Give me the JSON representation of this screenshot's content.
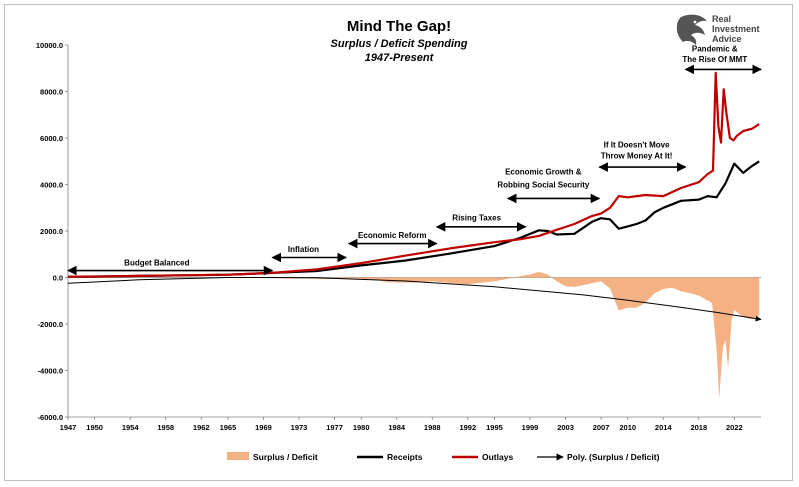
{
  "chart_data": {
    "type": "line",
    "title": "Mind The Gap!",
    "subtitle_line1": "Surplus / Deficit Spending",
    "subtitle_line2": "1947-Present",
    "x_range": [
      1947,
      2025
    ],
    "ylim": [
      -6000,
      10000
    ],
    "y_ticks": [
      -6000,
      -4000,
      -2000,
      0,
      2000,
      4000,
      6000,
      8000,
      10000
    ],
    "y_tick_labels": [
      "-6000.0",
      "-4000.0",
      "-2000.0",
      "0.0",
      "2000.0",
      "4000.0",
      "6000.0",
      "8000.0",
      "10000.0"
    ],
    "x_ticks": [
      1947,
      1950,
      1954,
      1958,
      1962,
      1965,
      1969,
      1973,
      1977,
      1980,
      1984,
      1988,
      1992,
      1995,
      1999,
      2003,
      2007,
      2010,
      2014,
      2018,
      2022
    ],
    "x_tick_labels": [
      "1947",
      "1950",
      "1954",
      "1958",
      "1962",
      "1965",
      "1969",
      "1973",
      "1977",
      "1980",
      "1984",
      "1988",
      "1992",
      "1995",
      "1999",
      "2003",
      "2007",
      "2010",
      "2014",
      "2018",
      "2022"
    ],
    "grid": false,
    "legend_position": "bottom",
    "series": [
      {
        "name": "Surplus / Deficit",
        "kind": "area",
        "color": "#f4b183",
        "x": [
          1947,
          1950,
          1955,
          1960,
          1965,
          1969,
          1971,
          1975,
          1976,
          1979,
          1982,
          1983,
          1986,
          1988,
          1991,
          1992,
          1995,
          1997,
          1998,
          1999,
          2000,
          2001,
          2002,
          2003,
          2004,
          2006,
          2007,
          2008,
          2009,
          2010,
          2011,
          2012,
          2013,
          2014,
          2015,
          2016,
          2017,
          2018,
          2019,
          2019.5,
          2020,
          2020.3,
          2020.7,
          2021,
          2021.3,
          2021.7,
          2022,
          2023,
          2024,
          2024.8
        ],
        "values": [
          10,
          0,
          -5,
          5,
          -10,
          5,
          -30,
          -60,
          -70,
          -40,
          -130,
          -210,
          -220,
          -160,
          -270,
          -290,
          -160,
          -20,
          70,
          130,
          240,
          130,
          -160,
          -380,
          -410,
          -250,
          -160,
          -460,
          -1420,
          -1300,
          -1300,
          -1080,
          -680,
          -490,
          -440,
          -590,
          -670,
          -780,
          -990,
          -1100,
          -3100,
          -5200,
          -3000,
          -2700,
          -3900,
          -1800,
          -1400,
          -1700,
          -1800,
          -1600
        ]
      },
      {
        "name": "Receipts",
        "kind": "line",
        "color": "#000000",
        "x": [
          1947,
          1950,
          1955,
          1960,
          1965,
          1970,
          1975,
          1980,
          1985,
          1990,
          1995,
          1998,
          2000,
          2001,
          2002,
          2004,
          2006,
          2007,
          2008,
          2009,
          2010,
          2011,
          2012,
          2013,
          2014,
          2016,
          2018,
          2019,
          2020,
          2021,
          2022,
          2023,
          2024,
          2024.8
        ],
        "values": [
          40,
          40,
          70,
          95,
          120,
          200,
          280,
          520,
          730,
          1030,
          1350,
          1720,
          2030,
          2000,
          1850,
          1880,
          2400,
          2550,
          2500,
          2100,
          2200,
          2300,
          2450,
          2800,
          3000,
          3300,
          3350,
          3500,
          3450,
          4050,
          4900,
          4500,
          4800,
          5000
        ]
      },
      {
        "name": "Outlays",
        "kind": "line",
        "color": "#c00000",
        "x": [
          1947,
          1950,
          1955,
          1960,
          1965,
          1970,
          1975,
          1980,
          1985,
          1990,
          1995,
          1998,
          2000,
          2002,
          2004,
          2006,
          2007,
          2008,
          2009,
          2010,
          2012,
          2014,
          2016,
          2018,
          2019,
          2019.6,
          2019.9,
          2020.2,
          2020.5,
          2020.8,
          2021.1,
          2021.5,
          2021.9,
          2022.3,
          2023,
          2024,
          2024.8
        ],
        "values": [
          35,
          45,
          70,
          95,
          120,
          200,
          350,
          620,
          940,
          1250,
          1520,
          1650,
          1790,
          2050,
          2300,
          2650,
          2750,
          3000,
          3500,
          3450,
          3550,
          3500,
          3850,
          4100,
          4450,
          4600,
          8800,
          6500,
          5800,
          8100,
          7100,
          6000,
          5900,
          6100,
          6300,
          6400,
          6600
        ]
      },
      {
        "name": "Poly. (Surplus / Deficit)",
        "kind": "trend",
        "color": "#000000",
        "x": [
          1947,
          1955,
          1965,
          1975,
          1985,
          1995,
          2005,
          2010,
          2015,
          2020,
          2025
        ],
        "values": [
          -250,
          -100,
          0,
          -10,
          -150,
          -400,
          -750,
          -980,
          -1230,
          -1500,
          -1800
        ]
      }
    ],
    "annotations": [
      {
        "text": "Budget Balanced",
        "x": 1957,
        "y": 520,
        "arrow_from": 1947,
        "arrow_to": 1970,
        "arrow_y": 300
      },
      {
        "text": "Inflation",
        "x": 1973.5,
        "y": 1090,
        "arrow_from": 1970,
        "arrow_to": 1978.3,
        "arrow_y": 860
      },
      {
        "text": "Economic Reform",
        "x": 1983.5,
        "y": 1690,
        "arrow_from": 1978.6,
        "arrow_to": 1988.5,
        "arrow_y": 1460
      },
      {
        "text": "Rising Taxes",
        "x": 1993,
        "y": 2460,
        "arrow_from": 1988.5,
        "arrow_to": 1998.5,
        "arrow_y": 2180
      },
      {
        "text": "Economic Growth &",
        "x": 2000.5,
        "y": 4430,
        "arrow_from": 1996.5,
        "arrow_to": 2006.8,
        "arrow_y": 3400
      },
      {
        "text": "Robbing Social Security",
        "x": 2000.5,
        "y": 3870,
        "arrow_from": null,
        "arrow_to": null,
        "arrow_y": null
      },
      {
        "text": "If It Doesn't Move",
        "x": 2011,
        "y": 5600,
        "arrow_from": 2006.8,
        "arrow_to": 2016.5,
        "arrow_y": 4750
      },
      {
        "text": "Throw Money At It!",
        "x": 2011,
        "y": 5120,
        "arrow_from": null,
        "arrow_to": null,
        "arrow_y": null
      },
      {
        "text": "Pandemic &",
        "x": 2019.8,
        "y": 9720,
        "arrow_from": 2016.5,
        "arrow_to": 2025,
        "arrow_y": 8950
      },
      {
        "text": "The Rise Of MMT",
        "x": 2019.8,
        "y": 9270,
        "arrow_from": null,
        "arrow_to": null,
        "arrow_y": null
      }
    ]
  },
  "logo": {
    "line1": "Real",
    "line2": "Investment",
    "line3": "Advice",
    "icon": "eagle-head-icon"
  },
  "colors": {
    "surplus_deficit": "#f4b183",
    "receipts": "#000000",
    "outlays": "#c00000"
  }
}
